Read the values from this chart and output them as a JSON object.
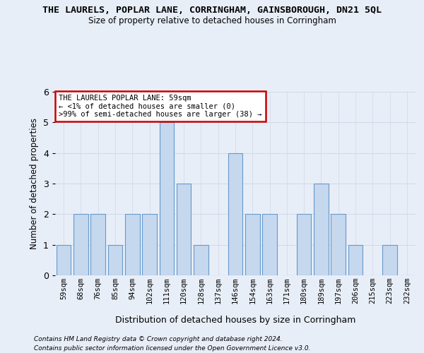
{
  "title": "THE LAURELS, POPLAR LANE, CORRINGHAM, GAINSBOROUGH, DN21 5QL",
  "subtitle": "Size of property relative to detached houses in Corringham",
  "xlabel": "Distribution of detached houses by size in Corringham",
  "ylabel": "Number of detached properties",
  "categories": [
    "59sqm",
    "68sqm",
    "76sqm",
    "85sqm",
    "94sqm",
    "102sqm",
    "111sqm",
    "120sqm",
    "128sqm",
    "137sqm",
    "146sqm",
    "154sqm",
    "163sqm",
    "171sqm",
    "180sqm",
    "189sqm",
    "197sqm",
    "206sqm",
    "215sqm",
    "223sqm",
    "232sqm"
  ],
  "values": [
    1,
    2,
    2,
    1,
    2,
    2,
    5,
    3,
    1,
    0,
    4,
    2,
    2,
    0,
    2,
    3,
    2,
    1,
    0,
    1,
    0
  ],
  "bar_color": "#c5d8ee",
  "bar_edge_color": "#6699cc",
  "grid_color": "#d0d8e8",
  "background_color": "#e8eef8",
  "annotation_box_color": "#ffffff",
  "annotation_border_color": "#cc0000",
  "annotation_line1": "THE LAURELS POPLAR LANE: 59sqm",
  "annotation_line2": "← <1% of detached houses are smaller (0)",
  "annotation_line3": ">99% of semi-detached houses are larger (38) →",
  "ylim": [
    0,
    6
  ],
  "yticks": [
    0,
    1,
    2,
    3,
    4,
    5,
    6
  ],
  "footer_line1": "Contains HM Land Registry data © Crown copyright and database right 2024.",
  "footer_line2": "Contains public sector information licensed under the Open Government Licence v3.0."
}
